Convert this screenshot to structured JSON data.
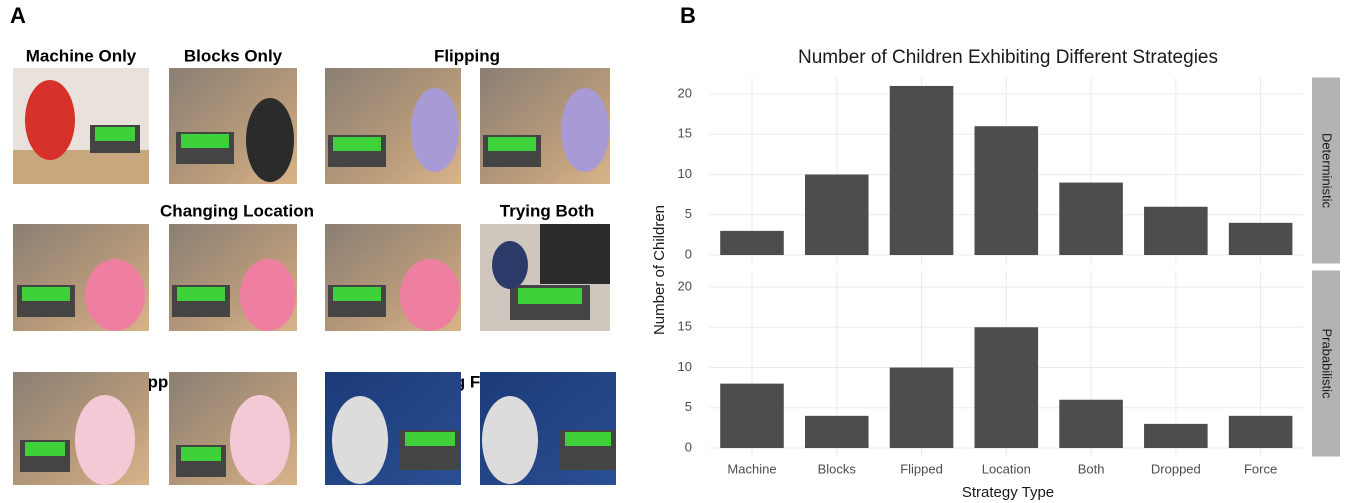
{
  "panel_labels": [
    "A",
    "B"
  ],
  "photo_captions": [
    "Machine Only",
    "Blocks Only",
    "Flipping",
    "Changing Location",
    "Trying Both",
    "Dropping",
    "Using Force"
  ],
  "chart_data": {
    "type": "bar",
    "title": "Number of Children Exhibiting Different Strategies",
    "x_label": "Strategy Type",
    "y_label": "Number of Children",
    "categories": [
      "Machine",
      "Blocks",
      "Flipped",
      "Location",
      "Both",
      "Dropped",
      "Force"
    ],
    "facets": [
      {
        "name": "Deterministic",
        "values": [
          3,
          10,
          21,
          16,
          9,
          6,
          4
        ]
      },
      {
        "name": "Prababilistic",
        "values": [
          8,
          4,
          10,
          15,
          6,
          3,
          4
        ]
      }
    ],
    "color": "#4d4d4d",
    "ylim": [
      -1.05,
      22.05
    ],
    "yticks": [
      0,
      5,
      10,
      15,
      20
    ],
    "grid": true
  }
}
